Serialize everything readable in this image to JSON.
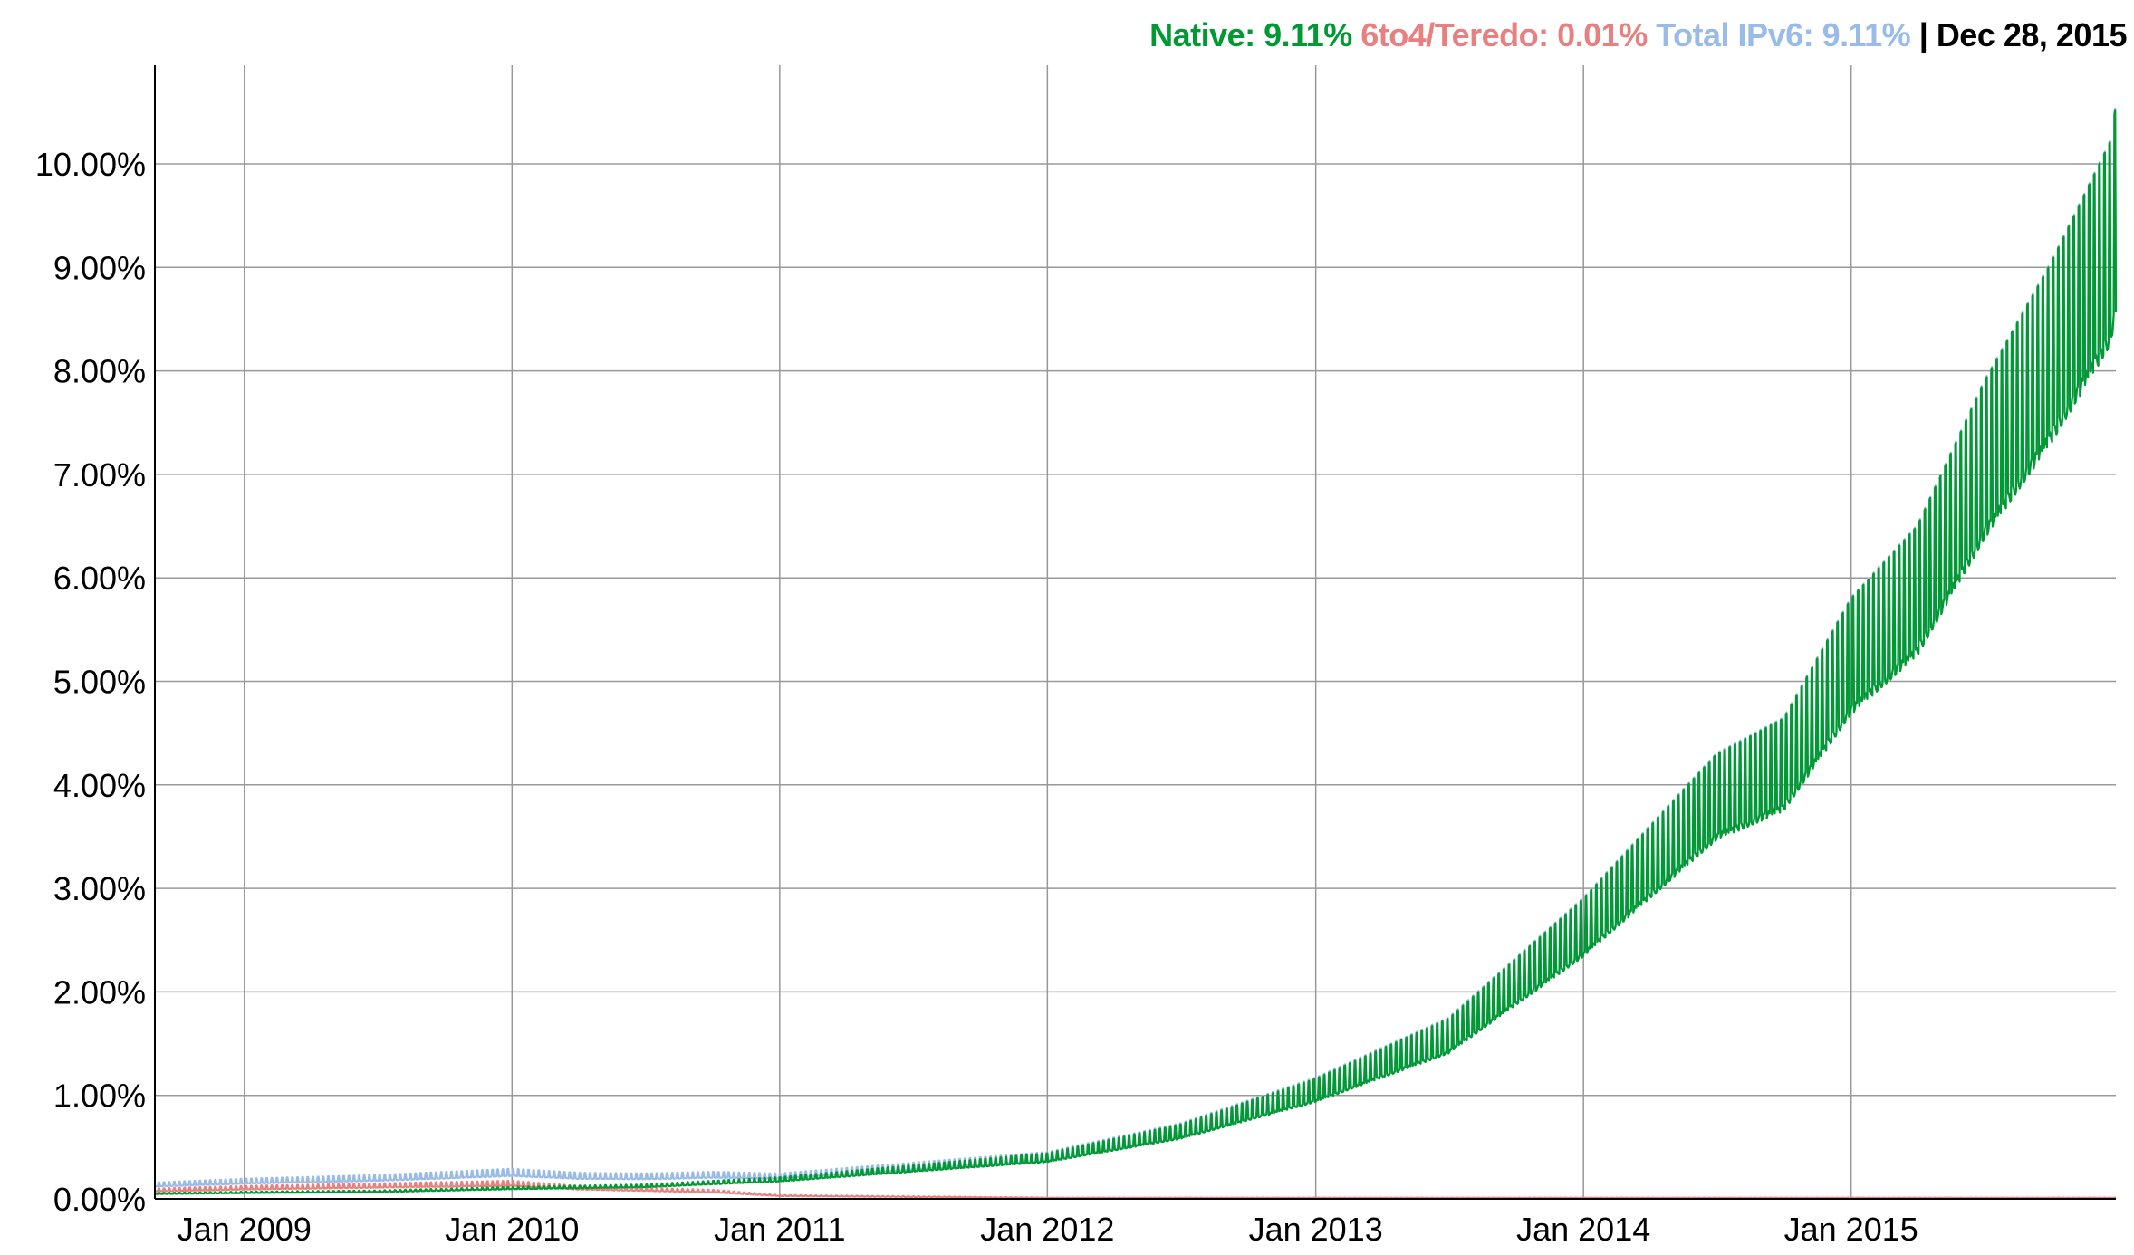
{
  "header": {
    "native_label": "Native: 9.11%",
    "teredo_label": "6to4/Teredo: 0.01%",
    "total_label": "Total IPv6: 9.11%",
    "separator": "|",
    "date_label": "Dec 28, 2015"
  },
  "colors": {
    "native": "#009933",
    "teredo": "#e88080",
    "total": "#99bbe8",
    "grid": "#999999",
    "axis": "#000000"
  },
  "chart_data": {
    "type": "line",
    "title": "Native: 9.11% 6to4/Teredo: 0.01% Total IPv6: 9.11% | Dec 28, 2015",
    "xlabel": "",
    "ylabel": "",
    "xlim": [
      "2008-09-01",
      "2015-12-28"
    ],
    "ylim": [
      0,
      10
    ],
    "grid": true,
    "x_ticks": [
      {
        "date": "2009-01-01",
        "label": "Jan 2009"
      },
      {
        "date": "2010-01-01",
        "label": "Jan 2010"
      },
      {
        "date": "2011-01-01",
        "label": "Jan 2011"
      },
      {
        "date": "2012-01-01",
        "label": "Jan 2012"
      },
      {
        "date": "2013-01-01",
        "label": "Jan 2013"
      },
      {
        "date": "2014-01-01",
        "label": "Jan 2014"
      },
      {
        "date": "2015-01-01",
        "label": "Jan 2015"
      }
    ],
    "y_ticks": [
      {
        "value": 0,
        "label": "0.00%"
      },
      {
        "value": 1,
        "label": "1.00%"
      },
      {
        "value": 2,
        "label": "2.00%"
      },
      {
        "value": 3,
        "label": "3.00%"
      },
      {
        "value": 4,
        "label": "4.00%"
      },
      {
        "value": 5,
        "label": "5.00%"
      },
      {
        "value": 6,
        "label": "6.00%"
      },
      {
        "value": 7,
        "label": "7.00%"
      },
      {
        "value": 8,
        "label": "8.00%"
      },
      {
        "value": 9,
        "label": "9.00%"
      },
      {
        "value": 10,
        "label": "10.00%"
      }
    ],
    "weekly_swing_fraction": 0.16,
    "series": [
      {
        "name": "Native",
        "key": "native",
        "points": [
          [
            "2008-09-01",
            0.05
          ],
          [
            "2009-01-01",
            0.06
          ],
          [
            "2009-07-01",
            0.07
          ],
          [
            "2010-01-01",
            0.1
          ],
          [
            "2010-07-01",
            0.12
          ],
          [
            "2011-01-01",
            0.18
          ],
          [
            "2011-07-01",
            0.28
          ],
          [
            "2012-01-01",
            0.38
          ],
          [
            "2012-07-01",
            0.62
          ],
          [
            "2013-01-01",
            1.0
          ],
          [
            "2013-07-01",
            1.5
          ],
          [
            "2014-01-01",
            2.5
          ],
          [
            "2014-07-01",
            3.7
          ],
          [
            "2014-10-01",
            4.0
          ],
          [
            "2015-01-01",
            5.0
          ],
          [
            "2015-04-01",
            5.6
          ],
          [
            "2015-07-01",
            6.8
          ],
          [
            "2015-10-01",
            7.8
          ],
          [
            "2015-12-20",
            8.8
          ],
          [
            "2015-12-28",
            9.11
          ]
        ]
      },
      {
        "name": "6to4/Teredo",
        "key": "teredo",
        "points": [
          [
            "2008-09-01",
            0.08
          ],
          [
            "2009-01-01",
            0.1
          ],
          [
            "2010-01-01",
            0.14
          ],
          [
            "2010-04-01",
            0.1
          ],
          [
            "2010-10-01",
            0.07
          ],
          [
            "2011-01-01",
            0.03
          ],
          [
            "2011-07-01",
            0.02
          ],
          [
            "2012-01-01",
            0.01
          ],
          [
            "2015-12-28",
            0.01
          ]
        ]
      },
      {
        "name": "Total IPv6",
        "key": "total",
        "derived": "native + teredo"
      }
    ]
  }
}
